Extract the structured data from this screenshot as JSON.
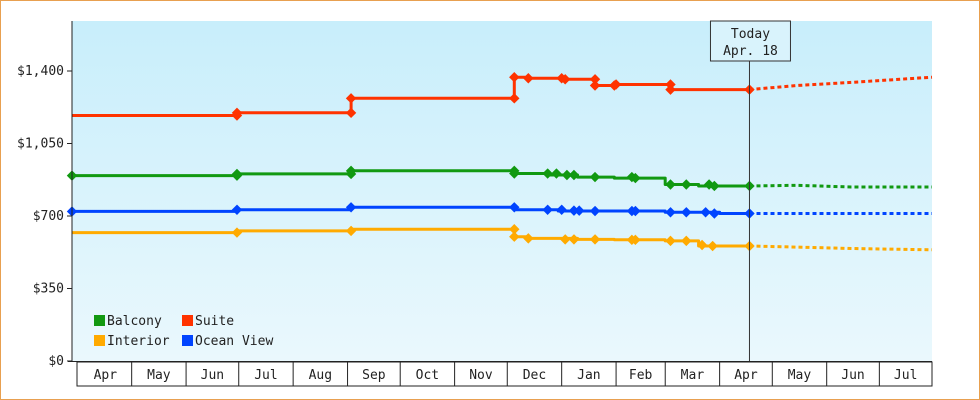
{
  "chart_data": {
    "type": "line",
    "title": "",
    "xlabel": "",
    "ylabel": "",
    "y_tick_labels": [
      "$0",
      "$350",
      "$700",
      "$1,050",
      "$1,400"
    ],
    "y_tick_values": [
      0,
      350,
      700,
      1050,
      1400
    ],
    "ylim": [
      0,
      1400
    ],
    "x_range": [
      "2021-03-28",
      "2022-07-31"
    ],
    "months": [
      {
        "label": "Apr",
        "start": "2021-04-01"
      },
      {
        "label": "May",
        "start": "2021-05-01"
      },
      {
        "label": "Jun",
        "start": "2021-06-01"
      },
      {
        "label": "Jul",
        "start": "2021-07-01"
      },
      {
        "label": "Aug",
        "start": "2021-08-01"
      },
      {
        "label": "Sep",
        "start": "2021-09-01"
      },
      {
        "label": "Oct",
        "start": "2021-10-01"
      },
      {
        "label": "Nov",
        "start": "2021-11-01"
      },
      {
        "label": "Dec",
        "start": "2021-12-01"
      },
      {
        "label": "Jan",
        "start": "2022-01-01"
      },
      {
        "label": "Feb",
        "start": "2022-02-01"
      },
      {
        "label": "Mar",
        "start": "2022-03-01"
      },
      {
        "label": "Apr",
        "start": "2022-04-01"
      },
      {
        "label": "May",
        "start": "2022-05-01"
      },
      {
        "label": "Jun",
        "start": "2022-06-01"
      },
      {
        "label": "Jul",
        "start": "2022-07-01"
      }
    ],
    "today": {
      "line1": "Today",
      "line2": "Apr. 18",
      "date": "2022-04-18"
    },
    "legend": {
      "placement": "bottom-left"
    },
    "series": [
      {
        "name": "Suite",
        "color": "#ff3300",
        "points": [
          [
            "2021-03-28",
            1185
          ],
          [
            "2021-06-30",
            1185
          ],
          [
            "2021-06-30",
            1198
          ],
          [
            "2021-09-03",
            1198
          ],
          [
            "2021-09-03",
            1268
          ],
          [
            "2021-12-05",
            1268
          ],
          [
            "2021-12-05",
            1370
          ],
          [
            "2021-12-13",
            1370
          ],
          [
            "2021-12-13",
            1365
          ],
          [
            "2022-01-01",
            1365
          ],
          [
            "2022-01-02",
            1360
          ],
          [
            "2022-01-20",
            1360
          ],
          [
            "2022-01-20",
            1330
          ],
          [
            "2022-01-31",
            1330
          ],
          [
            "2022-01-31",
            1335
          ],
          [
            "2022-03-04",
            1335
          ],
          [
            "2022-03-04",
            1310
          ],
          [
            "2022-04-18",
            1310
          ]
        ],
        "forecast": [
          [
            "2022-04-18",
            1310
          ],
          [
            "2022-05-15",
            1330
          ],
          [
            "2022-06-15",
            1345
          ],
          [
            "2022-07-31",
            1370
          ]
        ]
      },
      {
        "name": "Balcony",
        "color": "#119911",
        "points": [
          [
            "2021-03-28",
            895
          ],
          [
            "2021-06-30",
            895
          ],
          [
            "2021-06-30",
            903
          ],
          [
            "2021-09-03",
            903
          ],
          [
            "2021-09-03",
            918
          ],
          [
            "2021-12-05",
            918
          ],
          [
            "2021-12-05",
            905
          ],
          [
            "2021-12-24",
            905
          ],
          [
            "2021-12-24",
            898
          ],
          [
            "2022-01-10",
            898
          ],
          [
            "2022-01-10",
            888
          ],
          [
            "2022-01-31",
            888
          ],
          [
            "2022-01-31",
            883
          ],
          [
            "2022-03-01",
            883
          ],
          [
            "2022-03-01",
            852
          ],
          [
            "2022-03-20",
            852
          ],
          [
            "2022-03-20",
            845
          ],
          [
            "2022-04-18",
            845
          ]
        ],
        "forecast": [
          [
            "2022-04-18",
            845
          ],
          [
            "2022-05-15",
            848
          ],
          [
            "2022-06-15",
            840
          ],
          [
            "2022-07-31",
            840
          ]
        ]
      },
      {
        "name": "Ocean View",
        "color": "#0044ff",
        "points": [
          [
            "2021-03-28",
            722
          ],
          [
            "2021-06-30",
            722
          ],
          [
            "2021-06-30",
            730
          ],
          [
            "2021-09-03",
            730
          ],
          [
            "2021-09-03",
            742
          ],
          [
            "2021-12-05",
            742
          ],
          [
            "2021-12-05",
            730
          ],
          [
            "2021-12-30",
            730
          ],
          [
            "2021-12-30",
            724
          ],
          [
            "2022-03-01",
            724
          ],
          [
            "2022-03-01",
            718
          ],
          [
            "2022-04-01",
            718
          ],
          [
            "2022-04-01",
            712
          ],
          [
            "2022-04-18",
            712
          ]
        ],
        "forecast": [
          [
            "2022-04-18",
            712
          ],
          [
            "2022-07-31",
            712
          ]
        ]
      },
      {
        "name": "Interior",
        "color": "#ffaa00",
        "points": [
          [
            "2021-03-28",
            620
          ],
          [
            "2021-06-30",
            620
          ],
          [
            "2021-06-30",
            628
          ],
          [
            "2021-09-03",
            628
          ],
          [
            "2021-09-03",
            636
          ],
          [
            "2021-12-05",
            636
          ],
          [
            "2021-12-05",
            600
          ],
          [
            "2021-12-13",
            600
          ],
          [
            "2021-12-13",
            592
          ],
          [
            "2022-01-10",
            592
          ],
          [
            "2022-01-10",
            587
          ],
          [
            "2022-01-31",
            587
          ],
          [
            "2022-01-31",
            585
          ],
          [
            "2022-03-01",
            585
          ],
          [
            "2022-03-01",
            580
          ],
          [
            "2022-03-20",
            580
          ],
          [
            "2022-03-20",
            555
          ],
          [
            "2022-04-18",
            555
          ]
        ],
        "forecast": [
          [
            "2022-04-18",
            555
          ],
          [
            "2022-05-15",
            550
          ],
          [
            "2022-06-15",
            543
          ],
          [
            "2022-07-31",
            537
          ]
        ]
      }
    ],
    "markers": {
      "Suite": [
        [
          "2021-06-30",
          1185
        ],
        [
          "2021-06-30",
          1198
        ],
        [
          "2021-09-03",
          1198
        ],
        [
          "2021-09-03",
          1268
        ],
        [
          "2021-12-05",
          1268
        ],
        [
          "2021-12-05",
          1370
        ],
        [
          "2021-12-13",
          1365
        ],
        [
          "2022-01-01",
          1365
        ],
        [
          "2022-01-03",
          1360
        ],
        [
          "2022-01-20",
          1360
        ],
        [
          "2022-01-20",
          1330
        ],
        [
          "2022-01-31",
          1330
        ],
        [
          "2022-02-01",
          1335
        ],
        [
          "2022-03-04",
          1335
        ],
        [
          "2022-03-04",
          1310
        ],
        [
          "2022-04-18",
          1310
        ]
      ],
      "Balcony": [
        [
          "2021-03-28",
          895
        ],
        [
          "2021-06-30",
          895
        ],
        [
          "2021-06-30",
          903
        ],
        [
          "2021-09-03",
          903
        ],
        [
          "2021-09-03",
          918
        ],
        [
          "2021-12-05",
          918
        ],
        [
          "2021-12-05",
          905
        ],
        [
          "2021-12-24",
          905
        ],
        [
          "2021-12-29",
          905
        ],
        [
          "2022-01-04",
          898
        ],
        [
          "2022-01-08",
          898
        ],
        [
          "2022-01-20",
          888
        ],
        [
          "2022-02-10",
          888
        ],
        [
          "2022-02-12",
          883
        ],
        [
          "2022-03-04",
          852
        ],
        [
          "2022-03-13",
          852
        ],
        [
          "2022-03-26",
          852
        ],
        [
          "2022-03-29",
          845
        ],
        [
          "2022-04-18",
          845
        ]
      ],
      "Ocean View": [
        [
          "2021-03-28",
          722
        ],
        [
          "2021-06-30",
          730
        ],
        [
          "2021-09-03",
          742
        ],
        [
          "2021-12-05",
          742
        ],
        [
          "2021-12-24",
          730
        ],
        [
          "2022-01-01",
          730
        ],
        [
          "2022-01-08",
          726
        ],
        [
          "2022-01-11",
          726
        ],
        [
          "2022-01-20",
          724
        ],
        [
          "2022-02-10",
          724
        ],
        [
          "2022-02-12",
          724
        ],
        [
          "2022-03-04",
          718
        ],
        [
          "2022-03-13",
          718
        ],
        [
          "2022-03-24",
          718
        ],
        [
          "2022-03-29",
          712
        ],
        [
          "2022-04-18",
          712
        ]
      ],
      "Interior": [
        [
          "2021-06-30",
          620
        ],
        [
          "2021-09-03",
          628
        ],
        [
          "2021-12-05",
          636
        ],
        [
          "2021-12-05",
          600
        ],
        [
          "2021-12-13",
          592
        ],
        [
          "2022-01-03",
          587
        ],
        [
          "2022-01-08",
          587
        ],
        [
          "2022-01-20",
          587
        ],
        [
          "2022-02-10",
          585
        ],
        [
          "2022-02-12",
          585
        ],
        [
          "2022-03-04",
          580
        ],
        [
          "2022-03-13",
          580
        ],
        [
          "2022-03-22",
          560
        ],
        [
          "2022-03-28",
          555
        ],
        [
          "2022-04-18",
          555
        ]
      ]
    },
    "legend_order": [
      "Balcony",
      "Suite",
      "Interior",
      "Ocean View"
    ],
    "colors": {
      "plot_bg_top": "#c8eefb",
      "plot_bg_bottom": "#eaf8fd",
      "frame": "#e8a050"
    }
  }
}
